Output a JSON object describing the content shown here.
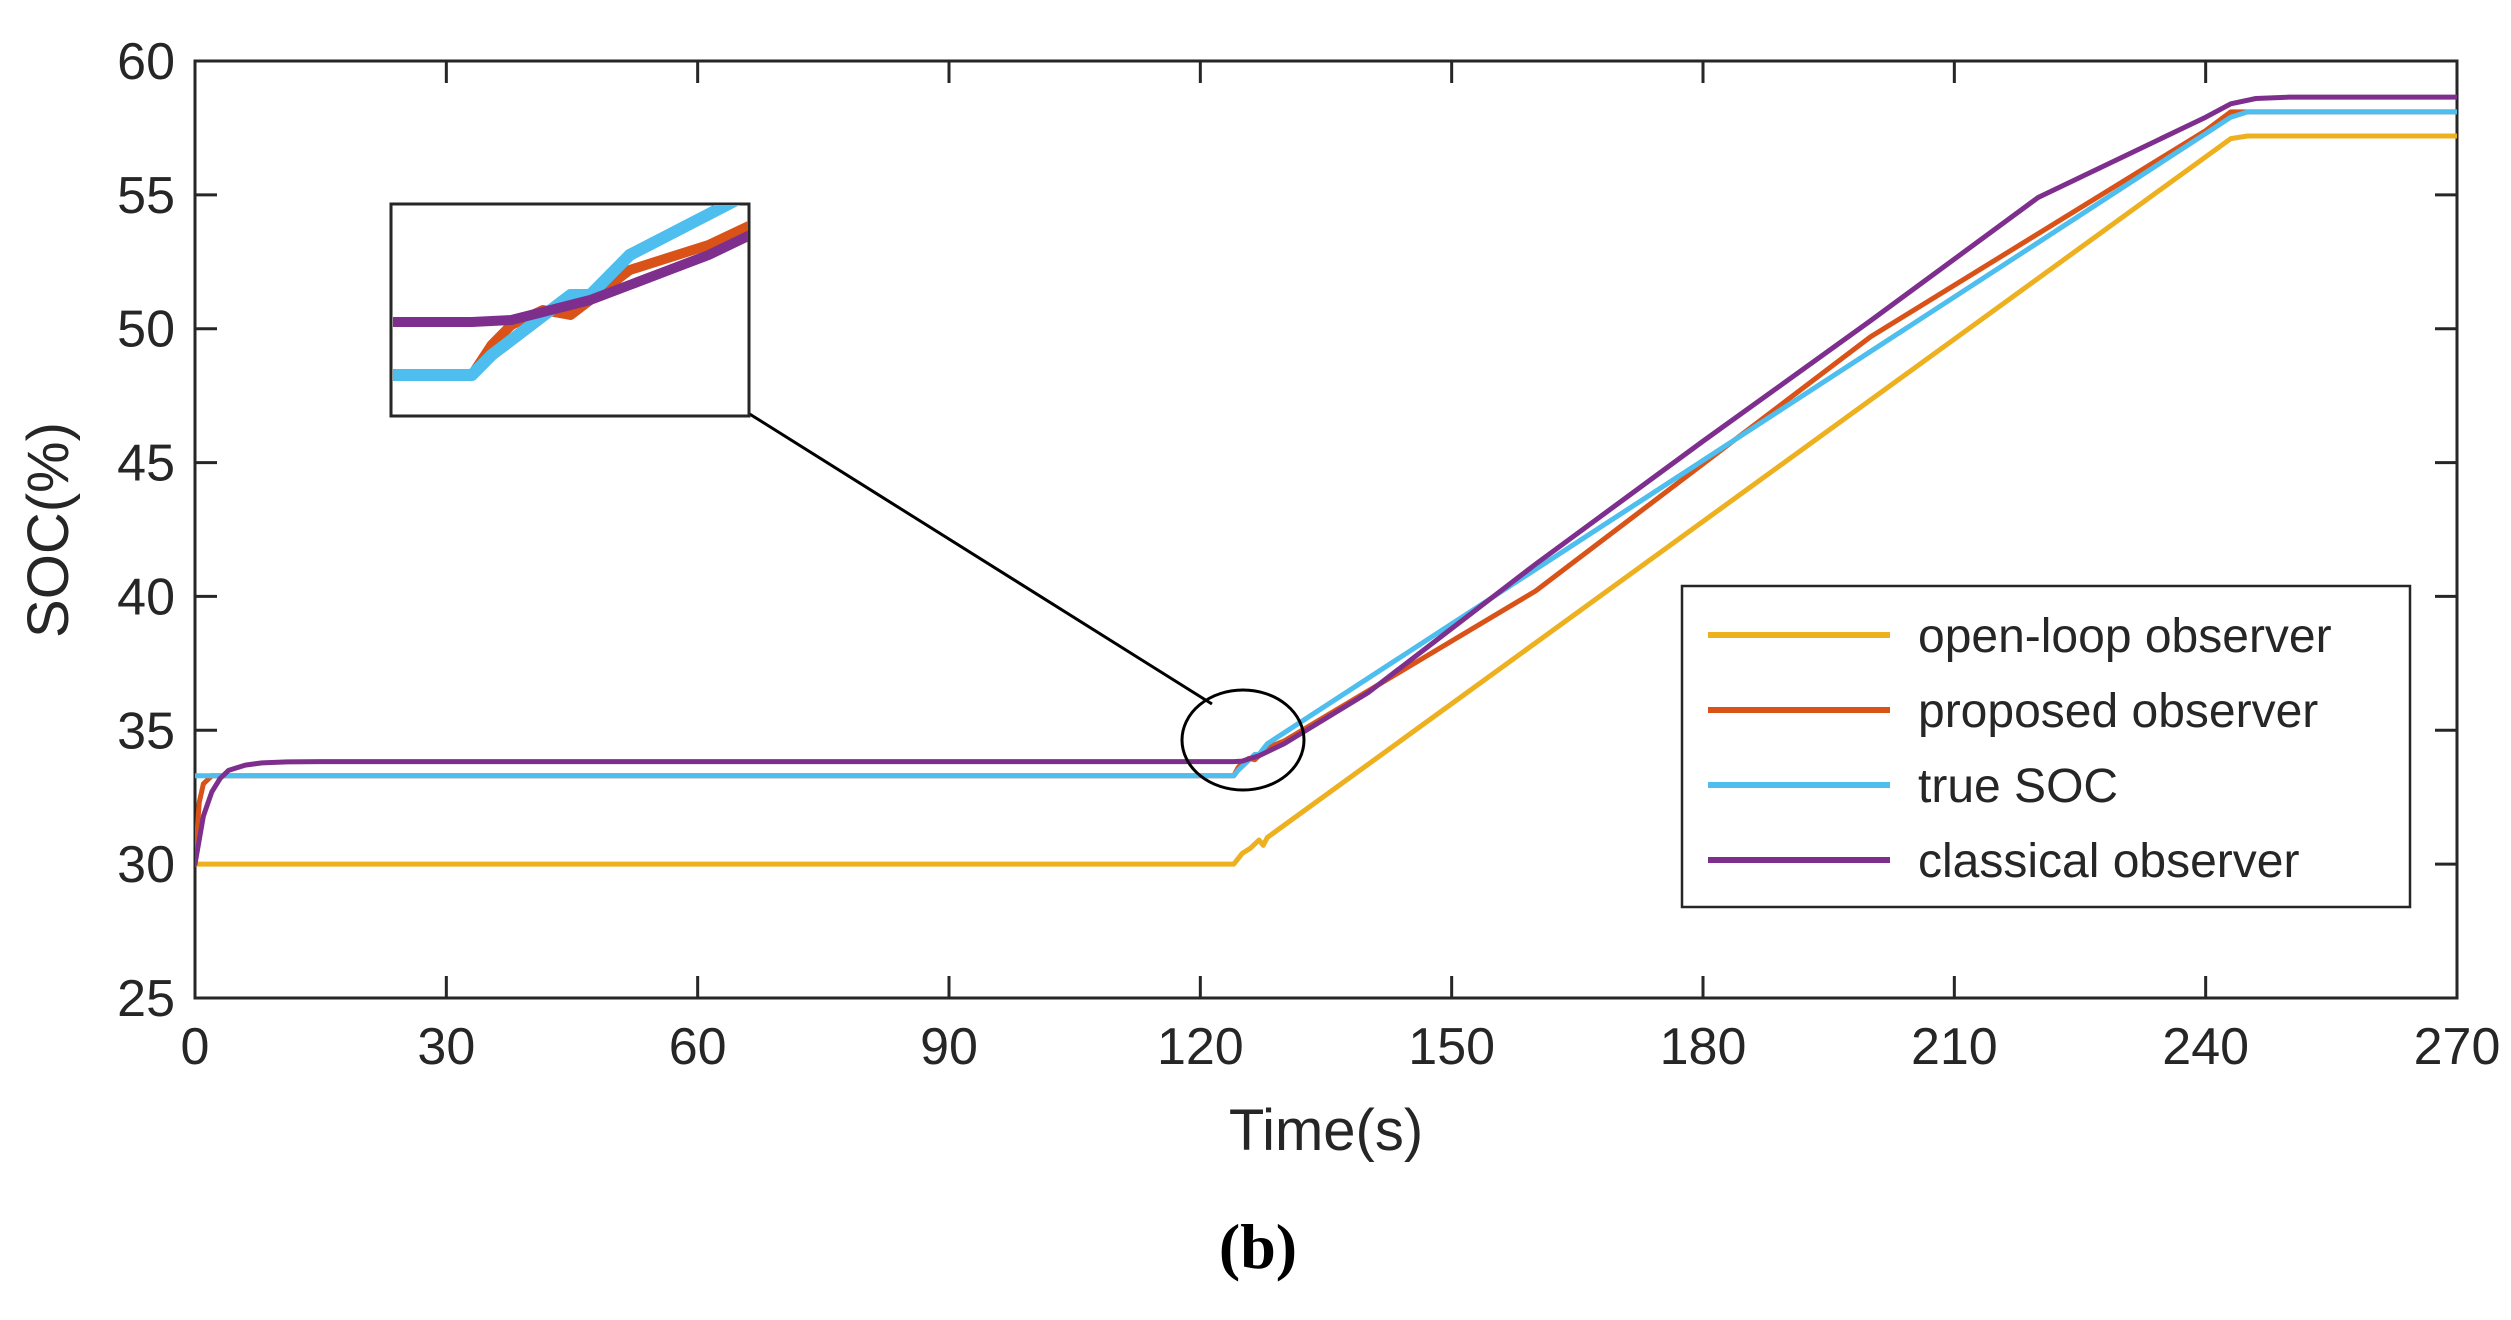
{
  "chart_data": {
    "type": "line",
    "title": "",
    "caption": "(b)",
    "xlabel": "Time(s)",
    "ylabel": "SOC(%)",
    "xlim": [
      0,
      270
    ],
    "ylim": [
      25,
      60
    ],
    "xticks": [
      0,
      30,
      60,
      90,
      120,
      150,
      180,
      210,
      240,
      270
    ],
    "yticks": [
      25,
      30,
      35,
      40,
      45,
      50,
      55,
      60
    ],
    "xtick_labels": [
      "0",
      "30",
      "60",
      "90",
      "120",
      "150",
      "180",
      "210",
      "240",
      "270"
    ],
    "ytick_labels": [
      "25",
      "30",
      "35",
      "40",
      "45",
      "50",
      "55",
      "60"
    ],
    "grid": false,
    "legend_position": "center-right",
    "series": [
      {
        "name": "open-loop observer",
        "color": "#EDB120",
        "x": [
          0,
          124,
          125,
          126,
          127,
          127.5,
          128,
          243,
          245,
          270
        ],
        "y": [
          30,
          30,
          30.4,
          30.6,
          30.9,
          30.7,
          31,
          57.1,
          57.2,
          57.2
        ]
      },
      {
        "name": "proposed observer",
        "color": "#D95319",
        "x": [
          0,
          0.5,
          1,
          2,
          124,
          124.5,
          125,
          125.8,
          126.5,
          127,
          127.5,
          128,
          130,
          160,
          200,
          240,
          243,
          245,
          270
        ],
        "y": [
          30,
          32.3,
          33,
          33.3,
          33.3,
          33.6,
          33.8,
          33.95,
          33.9,
          34.05,
          34.2,
          34.35,
          34.6,
          40.2,
          49.7,
          57.4,
          58.1,
          58.1,
          58.1
        ]
      },
      {
        "name": "true SOC",
        "color": "#4DBEEE",
        "x": [
          0,
          124,
          124.5,
          125.5,
          126.5,
          127,
          128,
          243,
          245,
          270
        ],
        "y": [
          33.3,
          33.3,
          33.5,
          33.8,
          34.1,
          34.1,
          34.5,
          57.9,
          58.1,
          58.1
        ]
      },
      {
        "name": "classical observer",
        "color": "#7E2F8E",
        "x": [
          0,
          1,
          2,
          3,
          4,
          6,
          8,
          11,
          15,
          124,
          125,
          126,
          127,
          128,
          129,
          130,
          140,
          160,
          180,
          200,
          220,
          240,
          243,
          246,
          250,
          270
        ],
        "y": [
          30,
          31.8,
          32.7,
          33.2,
          33.5,
          33.7,
          33.78,
          33.82,
          33.83,
          33.83,
          33.85,
          33.95,
          34.05,
          34.2,
          34.35,
          34.5,
          36.4,
          41.2,
          45.8,
          50.3,
          54.9,
          57.9,
          58.4,
          58.6,
          58.65,
          58.65
        ]
      }
    ],
    "annotations": [
      {
        "type": "ellipse-highlight",
        "x_center": 126.5,
        "y_center": 34.5,
        "description": "zoom region"
      },
      {
        "type": "inset",
        "description": "magnified view of the transition near t = 124 s"
      }
    ]
  }
}
